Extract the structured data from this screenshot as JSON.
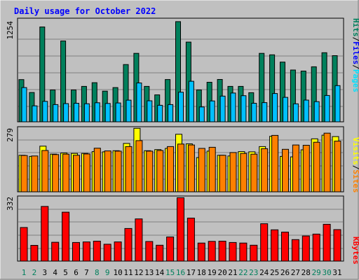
{
  "title": "Daily usage for October 2022",
  "colors": {
    "background": "#c0c0c0",
    "title": "#0000ff",
    "hits": "#00805c",
    "files": "#00c0ff",
    "pages": "#00e0ff",
    "sites": "#ff8000",
    "visits": "#ffff00",
    "kbytes": "#ff0000",
    "weekend_label": "#00805c",
    "weekday_label": "#000000"
  },
  "labels": {
    "pages": "Pages",
    "files": "Files",
    "hits": "Hits",
    "sites": "Sites",
    "visits": "Visits",
    "kbytes": "KBytes",
    "separator": "/"
  },
  "chart_data": [
    {
      "type": "bar",
      "panel": "hits-files-pages",
      "ymax_label": "1254",
      "ylim": [
        0,
        1254
      ],
      "categories": [
        "1",
        "2",
        "3",
        "4",
        "5",
        "6",
        "7",
        "8",
        "9",
        "10",
        "11",
        "12",
        "13",
        "14",
        "15",
        "16",
        "17",
        "18",
        "19",
        "20",
        "21",
        "22",
        "23",
        "24",
        "25",
        "26",
        "27",
        "28",
        "29",
        "30",
        "31"
      ],
      "weekend_days": [
        "1",
        "2",
        "8",
        "9",
        "15",
        "16",
        "22",
        "23",
        "29",
        "30"
      ],
      "series": [
        {
          "name": "Hits",
          "values": [
            518,
            360,
            1164,
            391,
            992,
            391,
            435,
            480,
            376,
            420,
            703,
            840,
            435,
            331,
            519,
            1229,
            978,
            391,
            485,
            520,
            435,
            435,
            357,
            840,
            822,
            733,
            636,
            623,
            675,
            848,
            812
          ]
        },
        {
          "name": "Files",
          "values": [
            420,
            196,
            251,
            211,
            223,
            228,
            222,
            234,
            225,
            231,
            265,
            477,
            258,
            203,
            211,
            363,
            497,
            182,
            256,
            315,
            353,
            320,
            228,
            235,
            347,
            300,
            221,
            266,
            247,
            323,
            444
          ]
        },
        {
          "name": "Pages",
          "values": [
            0,
            0,
            0,
            0,
            0,
            0,
            0,
            0,
            0,
            0,
            0,
            0,
            0,
            0,
            0,
            0,
            0,
            0,
            0,
            0,
            0,
            0,
            0,
            0,
            0,
            0,
            0,
            0,
            0,
            0,
            0
          ]
        }
      ]
    },
    {
      "type": "bar",
      "panel": "visits-sites",
      "ymax_label": "279",
      "ylim": [
        0,
        279
      ],
      "categories": [
        "1",
        "2",
        "3",
        "4",
        "5",
        "6",
        "7",
        "8",
        "9",
        "10",
        "11",
        "12",
        "13",
        "14",
        "15",
        "16",
        "17",
        "18",
        "19",
        "20",
        "21",
        "22",
        "23",
        "24",
        "25",
        "26",
        "27",
        "28",
        "29",
        "30",
        "31"
      ],
      "series": [
        {
          "name": "Visits",
          "values": [
            160,
            155,
            200,
            165,
            170,
            168,
            168,
            176,
            175,
            180,
            212,
            278,
            180,
            185,
            190,
            252,
            210,
            150,
            178,
            160,
            157,
            176,
            175,
            198,
            243,
            155,
            153,
            184,
            232,
            248,
            242
          ]
        },
        {
          "name": "Sites",
          "values": [
            159,
            157,
            181,
            163,
            165,
            160,
            166,
            191,
            179,
            178,
            198,
            224,
            178,
            181,
            198,
            209,
            205,
            190,
            195,
            160,
            172,
            168,
            165,
            189,
            247,
            186,
            205,
            204,
            217,
            257,
            222
          ]
        }
      ]
    },
    {
      "type": "bar",
      "panel": "kbytes",
      "ymax_label": "332",
      "ylim": [
        0,
        332
      ],
      "categories": [
        "1",
        "2",
        "3",
        "4",
        "5",
        "6",
        "7",
        "8",
        "9",
        "10",
        "11",
        "12",
        "13",
        "14",
        "15",
        "16",
        "17",
        "18",
        "19",
        "20",
        "21",
        "22",
        "23",
        "24",
        "25",
        "26",
        "27",
        "28",
        "29",
        "30",
        "31"
      ],
      "series": [
        {
          "name": "KBytes",
          "values": [
            175,
            82,
            285,
            98,
            255,
            97,
            100,
            104,
            88,
            100,
            170,
            220,
            102,
            83,
            126,
            330,
            224,
            94,
            103,
            104,
            97,
            94,
            83,
            195,
            163,
            151,
            112,
            131,
            141,
            192,
            164
          ]
        }
      ]
    }
  ]
}
